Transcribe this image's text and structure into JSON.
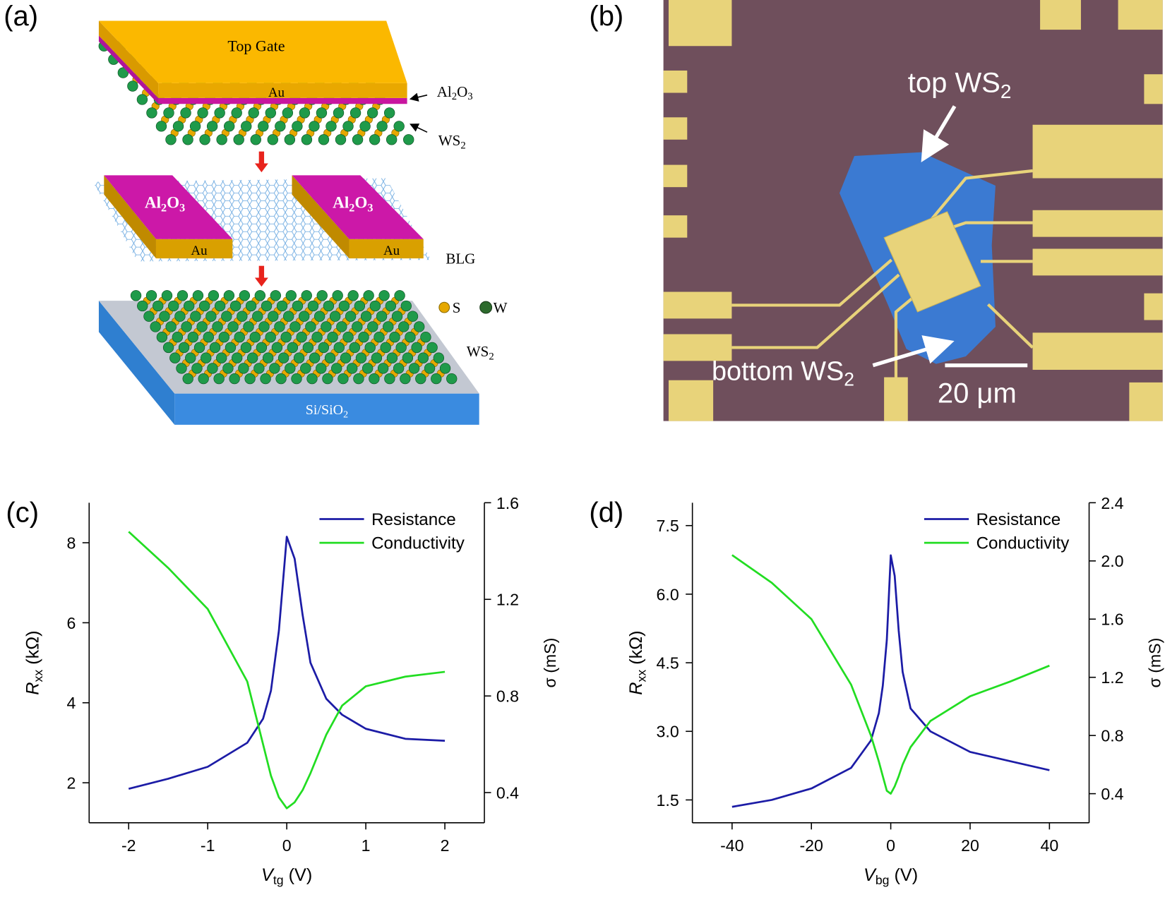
{
  "panels": [
    {
      "label": "(a)",
      "top_gate": "Top Gate",
      "au": "Au",
      "al2o3": [
        "Al",
        "2",
        "O",
        "3"
      ],
      "ws2": [
        "WS",
        "2"
      ],
      "blg": "BLG",
      "s": "S",
      "w": "W",
      "ws2_bottom": [
        "WS",
        "2"
      ],
      "substrate": [
        "Si/SiO",
        "2"
      ]
    },
    {
      "label": "(b)",
      "top": [
        "top WS",
        "2"
      ],
      "bottom": [
        "bottom WS",
        "2"
      ],
      "scale": "20 μm"
    }
  ],
  "chart_data": [
    {
      "type": "line",
      "panel_label": "(c)",
      "x": [
        -2,
        -1.5,
        -1,
        -0.5,
        -0.3,
        -0.2,
        -0.1,
        0,
        0.1,
        0.2,
        0.3,
        0.5,
        0.7,
        1,
        1.5,
        2
      ],
      "series": [
        {
          "name": "Resistance",
          "color": "#1c1ca6",
          "values": [
            1.85,
            2.1,
            2.4,
            3.0,
            3.6,
            4.3,
            5.8,
            8.15,
            7.6,
            6.2,
            5.0,
            4.1,
            3.7,
            3.35,
            3.1,
            3.05
          ]
        },
        {
          "name": "Conductivity",
          "color": "#22dd22",
          "axis": "y2",
          "values": [
            1.48,
            1.33,
            1.16,
            0.86,
            0.6,
            0.47,
            0.38,
            0.335,
            0.36,
            0.41,
            0.48,
            0.64,
            0.76,
            0.84,
            0.88,
            0.9
          ]
        }
      ],
      "xlim": [
        -2.5,
        2.5
      ],
      "xticks": [
        -2,
        -1,
        0,
        1,
        2
      ],
      "ylim": [
        1,
        9
      ],
      "yticks": [
        2,
        4,
        6,
        8
      ],
      "y2lim": [
        0.275,
        1.6
      ],
      "y2ticks": [
        0.4,
        0.8,
        1.2,
        1.6
      ],
      "xlabel": [
        "V",
        "tg",
        " (V)"
      ],
      "ylabel": [
        "R",
        "xx",
        " (kΩ)"
      ],
      "y2label": [
        "σ (mS)"
      ],
      "legend": "upper right"
    },
    {
      "type": "line",
      "panel_label": "(d)",
      "x": [
        -40,
        -30,
        -20,
        -10,
        -5,
        -3,
        -2,
        -1,
        0,
        1,
        2,
        3,
        5,
        10,
        20,
        30,
        40
      ],
      "series": [
        {
          "name": "Resistance",
          "color": "#1c1ca6",
          "values": [
            1.35,
            1.5,
            1.75,
            2.2,
            2.8,
            3.4,
            4.0,
            5.0,
            6.85,
            6.4,
            5.2,
            4.3,
            3.5,
            3.0,
            2.55,
            2.35,
            2.15
          ]
        },
        {
          "name": "Conductivity",
          "color": "#22dd22",
          "axis": "y2",
          "values": [
            2.04,
            1.85,
            1.6,
            1.15,
            0.8,
            0.62,
            0.52,
            0.42,
            0.4,
            0.45,
            0.52,
            0.6,
            0.72,
            0.9,
            1.07,
            1.17,
            1.28
          ]
        }
      ],
      "xlim": [
        -50,
        50
      ],
      "xticks": [
        -40,
        -20,
        0,
        20,
        40
      ],
      "ylim": [
        1,
        8
      ],
      "yticks": [
        1.5,
        {
          "value": 3,
          "label": "3.0"
        },
        4.5,
        {
          "value": 6,
          "label": "6.0"
        },
        7.5
      ],
      "y2lim": [
        0.2,
        2.4
      ],
      "y2ticks": [
        0.4,
        0.8,
        1.2,
        1.6,
        {
          "value": 2,
          "label": "2.0"
        },
        2.4
      ],
      "xlabel": [
        "V",
        "bg",
        " (V)"
      ],
      "ylabel": [
        "R",
        "xx",
        " (kΩ)"
      ],
      "y2label": [
        "σ (mS)"
      ],
      "legend": "upper right"
    }
  ]
}
